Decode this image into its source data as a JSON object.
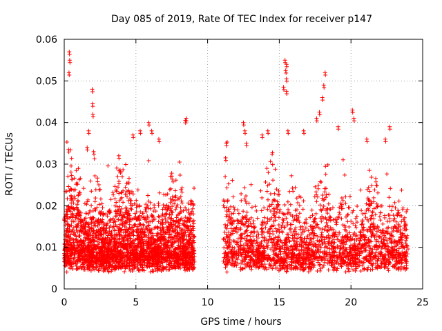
{
  "chart_data": {
    "type": "scatter",
    "title": "Day 085 of 2019, Rate Of TEC Index for receiver p147",
    "xlabel": "GPS time / hours",
    "ylabel": "ROTI / TECUs",
    "xlim": [
      0,
      25
    ],
    "ylim": [
      0,
      0.06
    ],
    "x_ticks": [
      0,
      5,
      10,
      15,
      20,
      25
    ],
    "x_tick_labels": [
      "0",
      "5",
      "10",
      "15",
      "20",
      "25"
    ],
    "y_ticks": [
      0,
      0.01,
      0.02,
      0.03,
      0.04,
      0.05,
      0.06
    ],
    "y_tick_labels": [
      "0",
      "0.01",
      "0.02",
      "0.03",
      "0.04",
      "0.05",
      "0.06"
    ],
    "grid": true,
    "marker": "+",
    "marker_color": "#ff0000",
    "series": [
      {
        "name": "ROTI",
        "segments": [
          [
            0.0,
            9.1
          ],
          [
            11.1,
            24.0
          ]
        ],
        "typical_range": [
          0.004,
          0.03
        ],
        "peaks": [
          {
            "x": 0.35,
            "y": 0.057
          },
          {
            "x": 0.38,
            "y": 0.055
          },
          {
            "x": 0.33,
            "y": 0.052
          },
          {
            "x": 0.3,
            "y": 0.0335
          },
          {
            "x": 1.7,
            "y": 0.038
          },
          {
            "x": 1.6,
            "y": 0.034
          },
          {
            "x": 1.95,
            "y": 0.048
          },
          {
            "x": 1.98,
            "y": 0.0445
          },
          {
            "x": 2.0,
            "y": 0.042
          },
          {
            "x": 2.05,
            "y": 0.033
          },
          {
            "x": 3.8,
            "y": 0.032
          },
          {
            "x": 4.8,
            "y": 0.037
          },
          {
            "x": 5.3,
            "y": 0.038
          },
          {
            "x": 5.9,
            "y": 0.04
          },
          {
            "x": 6.1,
            "y": 0.038
          },
          {
            "x": 6.6,
            "y": 0.036
          },
          {
            "x": 8.5,
            "y": 0.041
          },
          {
            "x": 8.45,
            "y": 0.0405
          },
          {
            "x": 11.3,
            "y": 0.035
          },
          {
            "x": 11.25,
            "y": 0.0315
          },
          {
            "x": 12.5,
            "y": 0.04
          },
          {
            "x": 12.6,
            "y": 0.038
          },
          {
            "x": 12.7,
            "y": 0.035
          },
          {
            "x": 13.8,
            "y": 0.037
          },
          {
            "x": 14.2,
            "y": 0.038
          },
          {
            "x": 15.4,
            "y": 0.055
          },
          {
            "x": 15.5,
            "y": 0.054
          },
          {
            "x": 15.45,
            "y": 0.0525
          },
          {
            "x": 15.5,
            "y": 0.0505
          },
          {
            "x": 15.3,
            "y": 0.0485
          },
          {
            "x": 15.5,
            "y": 0.0475
          },
          {
            "x": 15.6,
            "y": 0.038
          },
          {
            "x": 16.7,
            "y": 0.038
          },
          {
            "x": 17.6,
            "y": 0.041
          },
          {
            "x": 18.1,
            "y": 0.049
          },
          {
            "x": 18.0,
            "y": 0.046
          },
          {
            "x": 18.2,
            "y": 0.052
          },
          {
            "x": 17.8,
            "y": 0.0425
          },
          {
            "x": 19.1,
            "y": 0.039
          },
          {
            "x": 20.1,
            "y": 0.043
          },
          {
            "x": 20.2,
            "y": 0.041
          },
          {
            "x": 21.1,
            "y": 0.036
          },
          {
            "x": 22.4,
            "y": 0.036
          },
          {
            "x": 22.7,
            "y": 0.039
          }
        ]
      }
    ]
  }
}
